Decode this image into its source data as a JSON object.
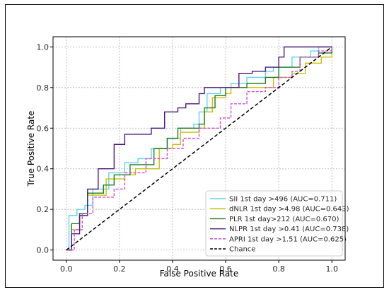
{
  "chart_data": {
    "type": "line",
    "title": "",
    "xlabel": "False Positive Rate",
    "ylabel": "True Positive Rate",
    "xlim": [
      -0.05,
      1.05
    ],
    "ylim": [
      -0.05,
      1.05
    ],
    "ticks": [
      0.0,
      0.2,
      0.4,
      0.6,
      0.8,
      1.0
    ],
    "tick_labels": [
      "0.0",
      "0.2",
      "0.4",
      "0.6",
      "0.8",
      "1.0"
    ],
    "grid": true,
    "legend_position": "bottom-right",
    "series": [
      {
        "name": "SII 1st day >496 (AUC=0.711)",
        "color": "#5fd3f3",
        "dash": "solid",
        "points": [
          [
            0,
            0
          ],
          [
            0.01,
            0.17
          ],
          [
            0.04,
            0.17
          ],
          [
            0.04,
            0.2
          ],
          [
            0.07,
            0.22
          ],
          [
            0.1,
            0.3
          ],
          [
            0.15,
            0.3
          ],
          [
            0.16,
            0.38
          ],
          [
            0.22,
            0.43
          ],
          [
            0.27,
            0.45
          ],
          [
            0.32,
            0.5
          ],
          [
            0.38,
            0.55
          ],
          [
            0.43,
            0.6
          ],
          [
            0.48,
            0.62
          ],
          [
            0.5,
            0.68
          ],
          [
            0.53,
            0.77
          ],
          [
            0.58,
            0.8
          ],
          [
            0.62,
            0.82
          ],
          [
            0.68,
            0.85
          ],
          [
            0.75,
            0.88
          ],
          [
            0.78,
            0.9
          ],
          [
            0.85,
            0.95
          ],
          [
            0.92,
            0.98
          ],
          [
            0.95,
            1.0
          ],
          [
            1.0,
            1.0
          ]
        ]
      },
      {
        "name": "dNLR 1st day >4.98 (AUC=0.643)",
        "color": "#c9c100",
        "dash": "solid",
        "points": [
          [
            0,
            0
          ],
          [
            0.02,
            0.1
          ],
          [
            0.05,
            0.18
          ],
          [
            0.08,
            0.27
          ],
          [
            0.13,
            0.27
          ],
          [
            0.15,
            0.35
          ],
          [
            0.22,
            0.37
          ],
          [
            0.26,
            0.4
          ],
          [
            0.35,
            0.5
          ],
          [
            0.4,
            0.52
          ],
          [
            0.43,
            0.58
          ],
          [
            0.5,
            0.6
          ],
          [
            0.52,
            0.68
          ],
          [
            0.55,
            0.75
          ],
          [
            0.6,
            0.77
          ],
          [
            0.62,
            0.8
          ],
          [
            0.72,
            0.8
          ],
          [
            0.78,
            0.85
          ],
          [
            0.85,
            0.87
          ],
          [
            0.9,
            0.92
          ],
          [
            0.96,
            0.95
          ],
          [
            1.0,
            1.0
          ]
        ]
      },
      {
        "name": "PLR 1st day>212 (AUC=0.670)",
        "color": "#1f7a1f",
        "dash": "solid",
        "points": [
          [
            0,
            0
          ],
          [
            0.02,
            0.13
          ],
          [
            0.05,
            0.18
          ],
          [
            0.08,
            0.28
          ],
          [
            0.14,
            0.32
          ],
          [
            0.18,
            0.37
          ],
          [
            0.24,
            0.42
          ],
          [
            0.33,
            0.5
          ],
          [
            0.38,
            0.55
          ],
          [
            0.42,
            0.6
          ],
          [
            0.5,
            0.62
          ],
          [
            0.52,
            0.7
          ],
          [
            0.56,
            0.76
          ],
          [
            0.6,
            0.8
          ],
          [
            0.68,
            0.82
          ],
          [
            0.75,
            0.85
          ],
          [
            0.8,
            0.9
          ],
          [
            0.88,
            0.95
          ],
          [
            0.95,
            0.97
          ],
          [
            1.0,
            1.0
          ]
        ]
      },
      {
        "name": "NLPR 1st day >0.41 (AUC=0.738)",
        "color": "#4b1a7a",
        "dash": "solid",
        "points": [
          [
            0,
            0
          ],
          [
            0.02,
            0.08
          ],
          [
            0.05,
            0.17
          ],
          [
            0.08,
            0.3
          ],
          [
            0.12,
            0.4
          ],
          [
            0.18,
            0.52
          ],
          [
            0.22,
            0.57
          ],
          [
            0.32,
            0.6
          ],
          [
            0.37,
            0.68
          ],
          [
            0.42,
            0.7
          ],
          [
            0.45,
            0.72
          ],
          [
            0.5,
            0.77
          ],
          [
            0.52,
            0.8
          ],
          [
            0.6,
            0.8
          ],
          [
            0.65,
            0.87
          ],
          [
            0.7,
            0.88
          ],
          [
            0.75,
            0.9
          ],
          [
            0.8,
            0.95
          ],
          [
            0.82,
            1.0
          ],
          [
            1.0,
            1.0
          ]
        ]
      },
      {
        "name": "APRI 1st day >1.51 (AUC=0.625)",
        "color": "#d24bd6",
        "dash": "dashed",
        "points": [
          [
            0,
            0
          ],
          [
            0.03,
            0.1
          ],
          [
            0.06,
            0.18
          ],
          [
            0.1,
            0.26
          ],
          [
            0.18,
            0.3
          ],
          [
            0.22,
            0.38
          ],
          [
            0.3,
            0.45
          ],
          [
            0.38,
            0.5
          ],
          [
            0.44,
            0.55
          ],
          [
            0.5,
            0.6
          ],
          [
            0.58,
            0.65
          ],
          [
            0.62,
            0.72
          ],
          [
            0.68,
            0.78
          ],
          [
            0.75,
            0.8
          ],
          [
            0.8,
            0.85
          ],
          [
            0.85,
            0.88
          ],
          [
            0.88,
            0.95
          ],
          [
            0.95,
            0.98
          ],
          [
            1.0,
            1.0
          ]
        ]
      },
      {
        "name": "Chance",
        "color": "#000000",
        "dash": "dashed",
        "points": [
          [
            0,
            0
          ],
          [
            1,
            1
          ]
        ]
      }
    ]
  }
}
